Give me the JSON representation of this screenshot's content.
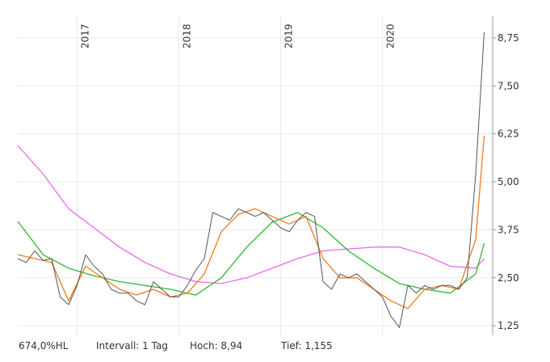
{
  "chart_data": {
    "type": "line",
    "title": "",
    "xlabel": "",
    "ylabel": "",
    "x_range": [
      "2016-06",
      "2021-02"
    ],
    "ylim": [
      1.0,
      9.0
    ],
    "y_ticks": [
      "1,25",
      "2,50",
      "3,75",
      "5,00",
      "6,25",
      "7,50",
      "8,75"
    ],
    "y_tick_values": [
      1.25,
      2.5,
      3.75,
      5.0,
      6.25,
      7.5,
      8.75
    ],
    "year_labels": [
      "2017",
      "2018",
      "2019",
      "2020"
    ],
    "year_label_dates": [
      "2017-01",
      "2018-01",
      "2019-01",
      "2020-01"
    ],
    "grid": true,
    "legend": "none",
    "series": [
      {
        "color": "#555555",
        "x": [
          "2016-06",
          "2016-07",
          "2016-08",
          "2016-09",
          "2016-10",
          "2016-11",
          "2016-12",
          "2017-01",
          "2017-02",
          "2017-03",
          "2017-04",
          "2017-05",
          "2017-06",
          "2017-07",
          "2017-08",
          "2017-09",
          "2017-10",
          "2017-11",
          "2017-12",
          "2018-01",
          "2018-02",
          "2018-03",
          "2018-04",
          "2018-05",
          "2018-06",
          "2018-07",
          "2018-08",
          "2018-09",
          "2018-10",
          "2018-11",
          "2018-12",
          "2019-01",
          "2019-02",
          "2019-03",
          "2019-04",
          "2019-05",
          "2019-06",
          "2019-07",
          "2019-08",
          "2019-09",
          "2019-10",
          "2019-11",
          "2019-12",
          "2020-01",
          "2020-02",
          "2020-03",
          "2020-04",
          "2020-05",
          "2020-06",
          "2020-07",
          "2020-08",
          "2020-09",
          "2020-10",
          "2020-11",
          "2020-12",
          "2021-01"
        ],
        "values": [
          3.0,
          2.9,
          3.2,
          2.95,
          3.0,
          2.0,
          1.8,
          2.3,
          3.1,
          2.8,
          2.6,
          2.2,
          2.1,
          2.1,
          1.9,
          1.8,
          2.4,
          2.2,
          2.0,
          2.0,
          2.3,
          2.7,
          3.0,
          4.2,
          4.1,
          4.0,
          4.3,
          4.2,
          4.1,
          4.2,
          4.0,
          3.8,
          3.7,
          4.0,
          4.2,
          4.1,
          2.4,
          2.2,
          2.6,
          2.5,
          2.6,
          2.4,
          2.2,
          2.0,
          1.5,
          1.2,
          2.3,
          2.1,
          2.3,
          2.2,
          2.3,
          2.3,
          2.2,
          2.5,
          5.2,
          8.9
        ]
      },
      {
        "color": "#f07a20",
        "x": [
          "2016-06",
          "2016-08",
          "2016-10",
          "2016-12",
          "2017-02",
          "2017-04",
          "2017-06",
          "2017-08",
          "2017-10",
          "2017-12",
          "2018-02",
          "2018-04",
          "2018-06",
          "2018-08",
          "2018-10",
          "2018-12",
          "2019-02",
          "2019-04",
          "2019-06",
          "2019-08",
          "2019-10",
          "2019-12",
          "2020-02",
          "2020-04",
          "2020-06",
          "2020-08",
          "2020-10",
          "2020-12",
          "2021-01"
        ],
        "values": [
          3.1,
          3.0,
          2.9,
          1.9,
          2.8,
          2.5,
          2.2,
          2.05,
          2.2,
          2.0,
          2.1,
          2.6,
          3.7,
          4.15,
          4.3,
          4.1,
          3.9,
          4.1,
          3.0,
          2.5,
          2.5,
          2.2,
          1.9,
          1.7,
          2.2,
          2.3,
          2.2,
          3.5,
          6.2
        ]
      },
      {
        "color": "#2fb830",
        "x": [
          "2016-06",
          "2016-09",
          "2016-12",
          "2017-03",
          "2017-06",
          "2017-09",
          "2017-12",
          "2018-03",
          "2018-06",
          "2018-09",
          "2018-12",
          "2019-03",
          "2019-06",
          "2019-09",
          "2019-12",
          "2020-03",
          "2020-06",
          "2020-09",
          "2020-12",
          "2021-01"
        ],
        "values": [
          3.97,
          3.1,
          2.75,
          2.55,
          2.4,
          2.3,
          2.2,
          2.05,
          2.5,
          3.3,
          3.95,
          4.2,
          3.8,
          3.2,
          2.75,
          2.35,
          2.2,
          2.1,
          2.6,
          3.4
        ]
      },
      {
        "color": "#e86be8",
        "x": [
          "2016-06",
          "2016-09",
          "2016-12",
          "2017-03",
          "2017-06",
          "2017-09",
          "2017-12",
          "2018-03",
          "2018-06",
          "2018-09",
          "2018-12",
          "2019-03",
          "2019-06",
          "2019-09",
          "2019-12",
          "2020-03",
          "2020-06",
          "2020-09",
          "2020-12",
          "2021-01"
        ],
        "values": [
          5.95,
          5.2,
          4.3,
          3.8,
          3.3,
          2.9,
          2.6,
          2.4,
          2.35,
          2.5,
          2.75,
          3.0,
          3.2,
          3.25,
          3.3,
          3.3,
          3.1,
          2.8,
          2.75,
          3.0
        ]
      }
    ]
  },
  "footer": {
    "percent": "674,0%HL",
    "interval": "Intervall: 1 Tag",
    "high": "Hoch:  8,94",
    "low": "Tief:  1,155"
  }
}
